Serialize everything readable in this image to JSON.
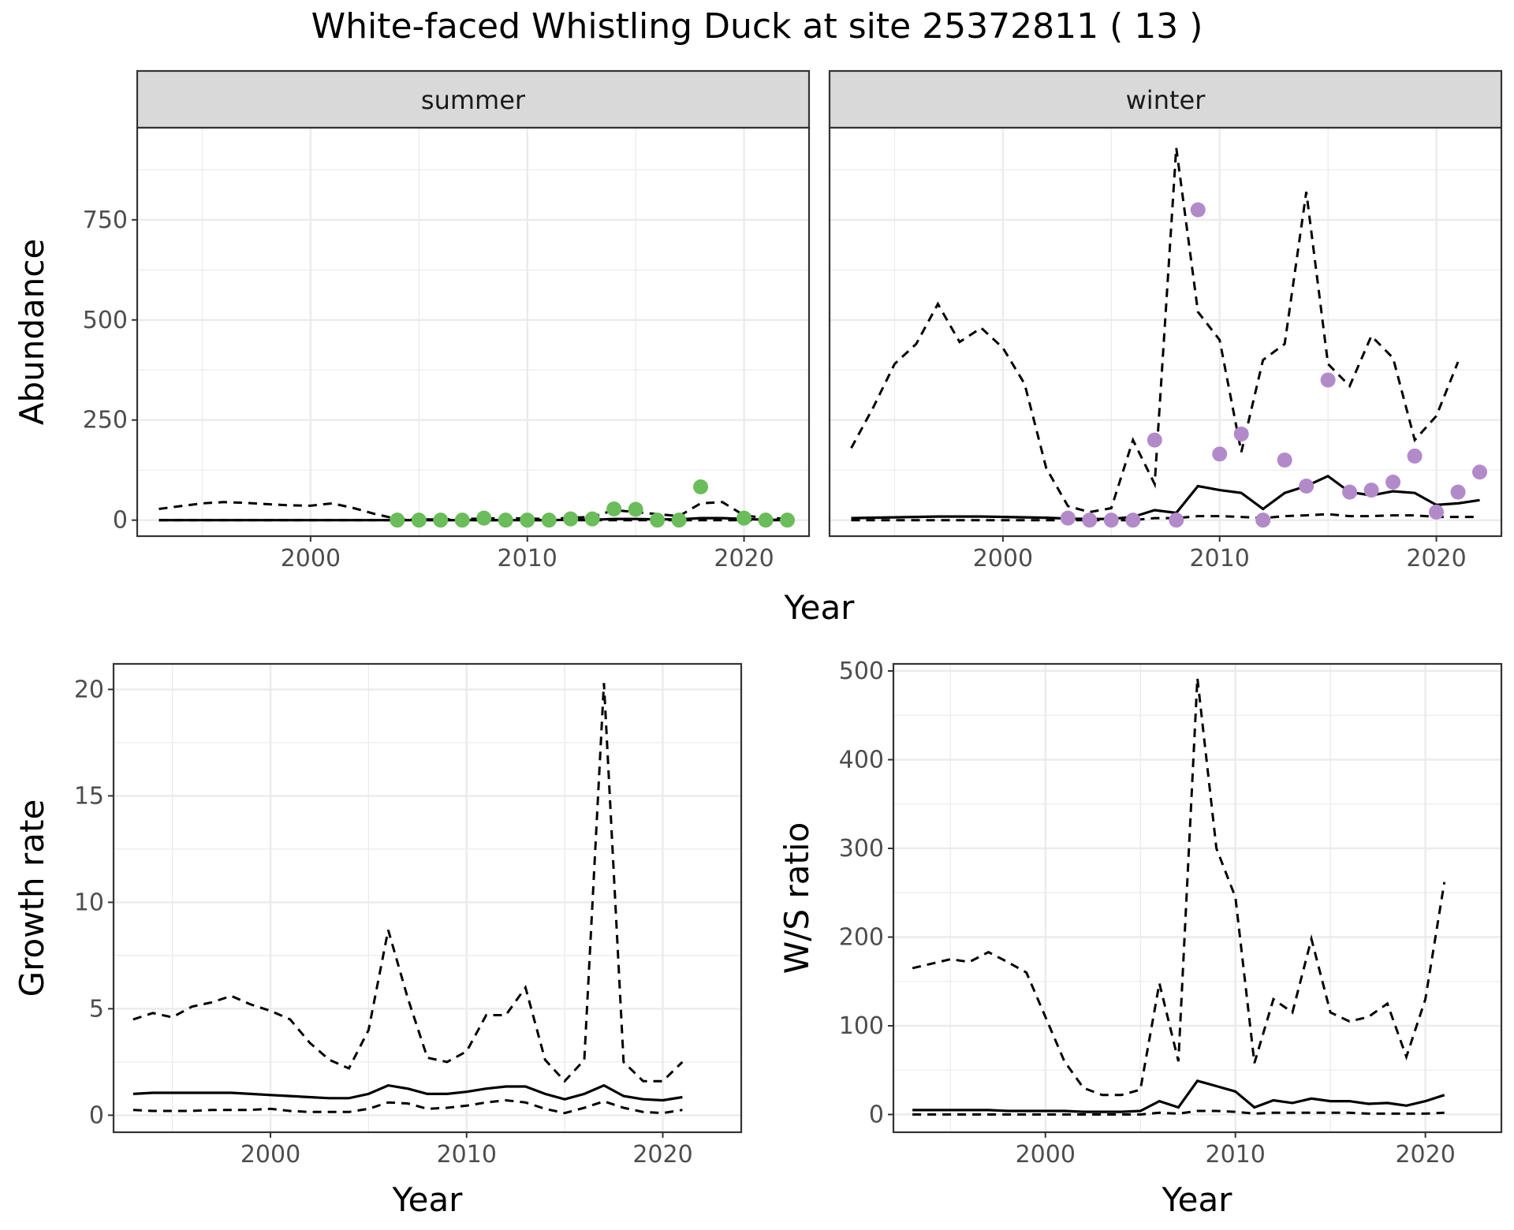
{
  "title": "White-faced Whistling Duck at site 25372811 ( 13 )",
  "colors": {
    "summer_points": "#6ABD5A",
    "winter_points": "#B28AC9",
    "line": "#000000"
  },
  "chart_data": [
    {
      "id": "abundance",
      "type": "line",
      "ylabel": "Abundance",
      "xlabel": "Year",
      "x_ticks": [
        "2000",
        "2010",
        "2020"
      ],
      "y_ticks": [
        "0",
        "250",
        "500",
        "750"
      ],
      "xlim": [
        1992,
        2023
      ],
      "ylim": [
        -40,
        980
      ],
      "grid": true,
      "facets": [
        {
          "name": "summer",
          "point_color": "#6ABD5A",
          "x": [
            1993,
            1994,
            1995,
            1996,
            1997,
            1998,
            1999,
            2000,
            2001,
            2002,
            2003,
            2004,
            2005,
            2006,
            2007,
            2008,
            2009,
            2010,
            2011,
            2012,
            2013,
            2014,
            2015,
            2016,
            2017,
            2018,
            2019,
            2020,
            2021,
            2022
          ],
          "mean": [
            0,
            0,
            0,
            0,
            0,
            0,
            0,
            0,
            0,
            0,
            0,
            0,
            0,
            0,
            0,
            0,
            0,
            0,
            0,
            1,
            1,
            3,
            3,
            2,
            2,
            5,
            5,
            3,
            1,
            1
          ],
          "upper": [
            28,
            35,
            42,
            45,
            43,
            40,
            37,
            36,
            42,
            30,
            15,
            3,
            2,
            2,
            3,
            4,
            5,
            4,
            3,
            6,
            8,
            25,
            20,
            15,
            10,
            42,
            45,
            12,
            5,
            4
          ],
          "lower": [
            0,
            0,
            0,
            0,
            0,
            0,
            0,
            0,
            0,
            0,
            0,
            0,
            0,
            0,
            0,
            0,
            0,
            0,
            0,
            0,
            0,
            0,
            0,
            0,
            0,
            0,
            0,
            0,
            0,
            0
          ],
          "points_x": [
            2004,
            2005,
            2006,
            2007,
            2008,
            2009,
            2010,
            2011,
            2012,
            2013,
            2014,
            2015,
            2016,
            2017,
            2018,
            2020,
            2021,
            2022
          ],
          "points_y": [
            0,
            0,
            0,
            0,
            5,
            0,
            0,
            0,
            3,
            3,
            28,
            27,
            0,
            0,
            83,
            5,
            0,
            0
          ]
        },
        {
          "name": "winter",
          "point_color": "#B28AC9",
          "x": [
            1993,
            1994,
            1995,
            1996,
            1997,
            1998,
            1999,
            2000,
            2001,
            2002,
            2003,
            2004,
            2005,
            2006,
            2007,
            2008,
            2009,
            2010,
            2011,
            2012,
            2013,
            2014,
            2015,
            2016,
            2017,
            2018,
            2019,
            2020,
            2021,
            2022
          ],
          "mean": [
            5,
            6,
            7,
            8,
            9,
            9,
            9,
            8,
            7,
            6,
            4,
            3,
            3,
            8,
            25,
            18,
            85,
            75,
            68,
            28,
            68,
            85,
            110,
            70,
            62,
            72,
            68,
            38,
            42,
            50
          ],
          "upper": [
            180,
            280,
            390,
            440,
            540,
            445,
            480,
            430,
            340,
            130,
            35,
            20,
            30,
            200,
            90,
            930,
            520,
            450,
            170,
            400,
            440,
            820,
            390,
            335,
            460,
            405,
            200,
            260,
            395,
            null
          ],
          "lower": [
            0,
            0,
            0,
            0,
            0,
            0,
            0,
            0,
            0,
            0,
            0,
            0,
            0,
            0,
            5,
            5,
            10,
            10,
            8,
            5,
            10,
            12,
            15,
            10,
            10,
            12,
            12,
            8,
            8,
            8
          ],
          "points_x": [
            2003,
            2004,
            2005,
            2006,
            2007,
            2008,
            2009,
            2010,
            2011,
            2012,
            2013,
            2014,
            2015,
            2016,
            2017,
            2018,
            2019,
            2020,
            2021,
            2022
          ],
          "points_y": [
            5,
            0,
            0,
            0,
            200,
            0,
            775,
            165,
            215,
            0,
            150,
            85,
            350,
            70,
            75,
            95,
            160,
            20,
            70,
            120
          ]
        }
      ]
    },
    {
      "id": "growth",
      "type": "line",
      "ylabel": "Growth rate",
      "xlabel": "Year",
      "x_ticks": [
        "2000",
        "2010",
        "2020"
      ],
      "y_ticks": [
        "0",
        "5",
        "10",
        "15",
        "20"
      ],
      "xlim": [
        1992,
        2024
      ],
      "ylim": [
        -0.8,
        21.2
      ],
      "grid": true,
      "x": [
        1993,
        1994,
        1995,
        1996,
        1997,
        1998,
        1999,
        2000,
        2001,
        2002,
        2003,
        2004,
        2005,
        2006,
        2007,
        2008,
        2009,
        2010,
        2011,
        2012,
        2013,
        2014,
        2015,
        2016,
        2017,
        2018,
        2019,
        2020,
        2021
      ],
      "mean": [
        1.0,
        1.05,
        1.05,
        1.05,
        1.05,
        1.05,
        1.0,
        0.95,
        0.9,
        0.85,
        0.8,
        0.8,
        1.0,
        1.4,
        1.25,
        1.0,
        1.0,
        1.1,
        1.25,
        1.35,
        1.35,
        1.0,
        0.75,
        1.0,
        1.4,
        0.9,
        0.75,
        0.7,
        0.85
      ],
      "upper": [
        4.5,
        4.8,
        4.6,
        5.1,
        5.3,
        5.6,
        5.2,
        4.9,
        4.5,
        3.4,
        2.6,
        2.2,
        4.0,
        8.7,
        5.5,
        2.7,
        2.5,
        3.0,
        4.7,
        4.7,
        6.0,
        2.6,
        1.6,
        2.6,
        20.3,
        2.5,
        1.6,
        1.6,
        2.5
      ],
      "lower": [
        0.25,
        0.2,
        0.2,
        0.2,
        0.25,
        0.25,
        0.25,
        0.3,
        0.2,
        0.15,
        0.15,
        0.15,
        0.3,
        0.6,
        0.55,
        0.3,
        0.35,
        0.45,
        0.6,
        0.7,
        0.6,
        0.3,
        0.1,
        0.35,
        0.65,
        0.35,
        0.15,
        0.1,
        0.25
      ]
    },
    {
      "id": "ws_ratio",
      "type": "line",
      "ylabel": "W/S ratio",
      "xlabel": "Year",
      "x_ticks": [
        "2000",
        "2010",
        "2020"
      ],
      "y_ticks": [
        "0",
        "100",
        "200",
        "300",
        "400",
        "500"
      ],
      "xlim": [
        1992,
        2024
      ],
      "ylim": [
        -20,
        508
      ],
      "grid": true,
      "x": [
        1993,
        1994,
        1995,
        1996,
        1997,
        1998,
        1999,
        2000,
        2001,
        2002,
        2003,
        2004,
        2005,
        2006,
        2007,
        2008,
        2009,
        2010,
        2011,
        2012,
        2013,
        2014,
        2015,
        2016,
        2017,
        2018,
        2019,
        2020,
        2021
      ],
      "mean": [
        5,
        5,
        5,
        5,
        5,
        4,
        4,
        4,
        4,
        3,
        3,
        3,
        4,
        15,
        8,
        38,
        32,
        26,
        8,
        16,
        13,
        18,
        15,
        15,
        12,
        13,
        10,
        15,
        22
      ],
      "upper": [
        165,
        170,
        175,
        172,
        183,
        172,
        160,
        110,
        60,
        30,
        22,
        22,
        28,
        148,
        60,
        492,
        300,
        245,
        58,
        130,
        115,
        198,
        115,
        105,
        110,
        125,
        65,
        130,
        262
      ],
      "lower": [
        0,
        0,
        0,
        0,
        0,
        0,
        0,
        0,
        0,
        0,
        0,
        0,
        0,
        2,
        1,
        4,
        4,
        3,
        1,
        2,
        2,
        2,
        2,
        2,
        1,
        1,
        1,
        1,
        2
      ]
    }
  ]
}
